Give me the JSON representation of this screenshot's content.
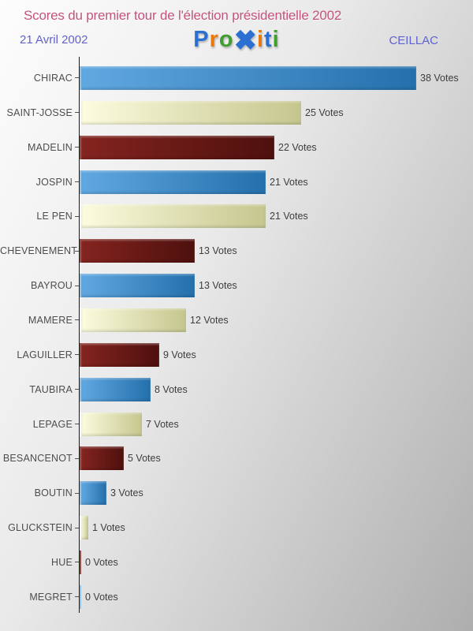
{
  "header": {
    "title": "Scores du premier tour de l'élection présidentielle 2002",
    "date": "21 Avril 2002",
    "location": "CEILLAC",
    "title_color": "#c5527c",
    "subtitle_color": "#6163cf",
    "logo_letters": [
      {
        "char": "P",
        "color": "#2b6fd2",
        "large": false
      },
      {
        "char": "r",
        "color": "#e8790f",
        "large": false
      },
      {
        "char": "o",
        "color": "#3f9e2f",
        "large": false
      },
      {
        "char": "✖",
        "color": "#2b6fd2",
        "large": true
      },
      {
        "char": "i",
        "color": "#e8790f",
        "large": false
      },
      {
        "char": "t",
        "color": "#2b6fd2",
        "large": false
      },
      {
        "char": "i",
        "color": "#3f9e2f",
        "large": false
      }
    ]
  },
  "chart_data": {
    "type": "bar",
    "orientation": "horizontal",
    "title": "Scores du premier tour de l'élection présidentielle 2002",
    "categories": [
      "CHIRAC",
      "SAINT-JOSSE",
      "MADELIN",
      "JOSPIN",
      "LE PEN",
      "CHEVENEMENT",
      "BAYROU",
      "MAMERE",
      "LAGUILLER",
      "TAUBIRA",
      "LEPAGE",
      "BESANCENOT",
      "BOUTIN",
      "GLUCKSTEIN",
      "HUE",
      "MEGRET"
    ],
    "values": [
      38,
      25,
      22,
      21,
      21,
      13,
      13,
      12,
      9,
      8,
      7,
      5,
      3,
      1,
      0,
      0
    ],
    "value_labels": [
      "38 Votes",
      "25 Votes",
      "22 Votes",
      "21 Votes",
      "21 Votes",
      "13 Votes",
      "13 Votes",
      "12 Votes",
      "9 Votes",
      "8 Votes",
      "7 Votes",
      "5 Votes",
      "3 Votes",
      "1 Votes",
      "0 Votes",
      "0 Votes"
    ],
    "xlim": [
      0,
      38
    ],
    "grid": false,
    "legend": false,
    "bar_color_cycle": [
      "blue",
      "cream",
      "darkred"
    ],
    "bar_colors": {
      "blue": {
        "start": "#61a8e1",
        "end": "#2470ac",
        "edge": "#8fc3ea"
      },
      "cream": {
        "start": "#fcfcdf",
        "end": "#c5c68e",
        "edge": "#ffffff"
      },
      "darkred": {
        "start": "#84241f",
        "end": "#4e100d",
        "edge": "#a04a42"
      }
    }
  }
}
